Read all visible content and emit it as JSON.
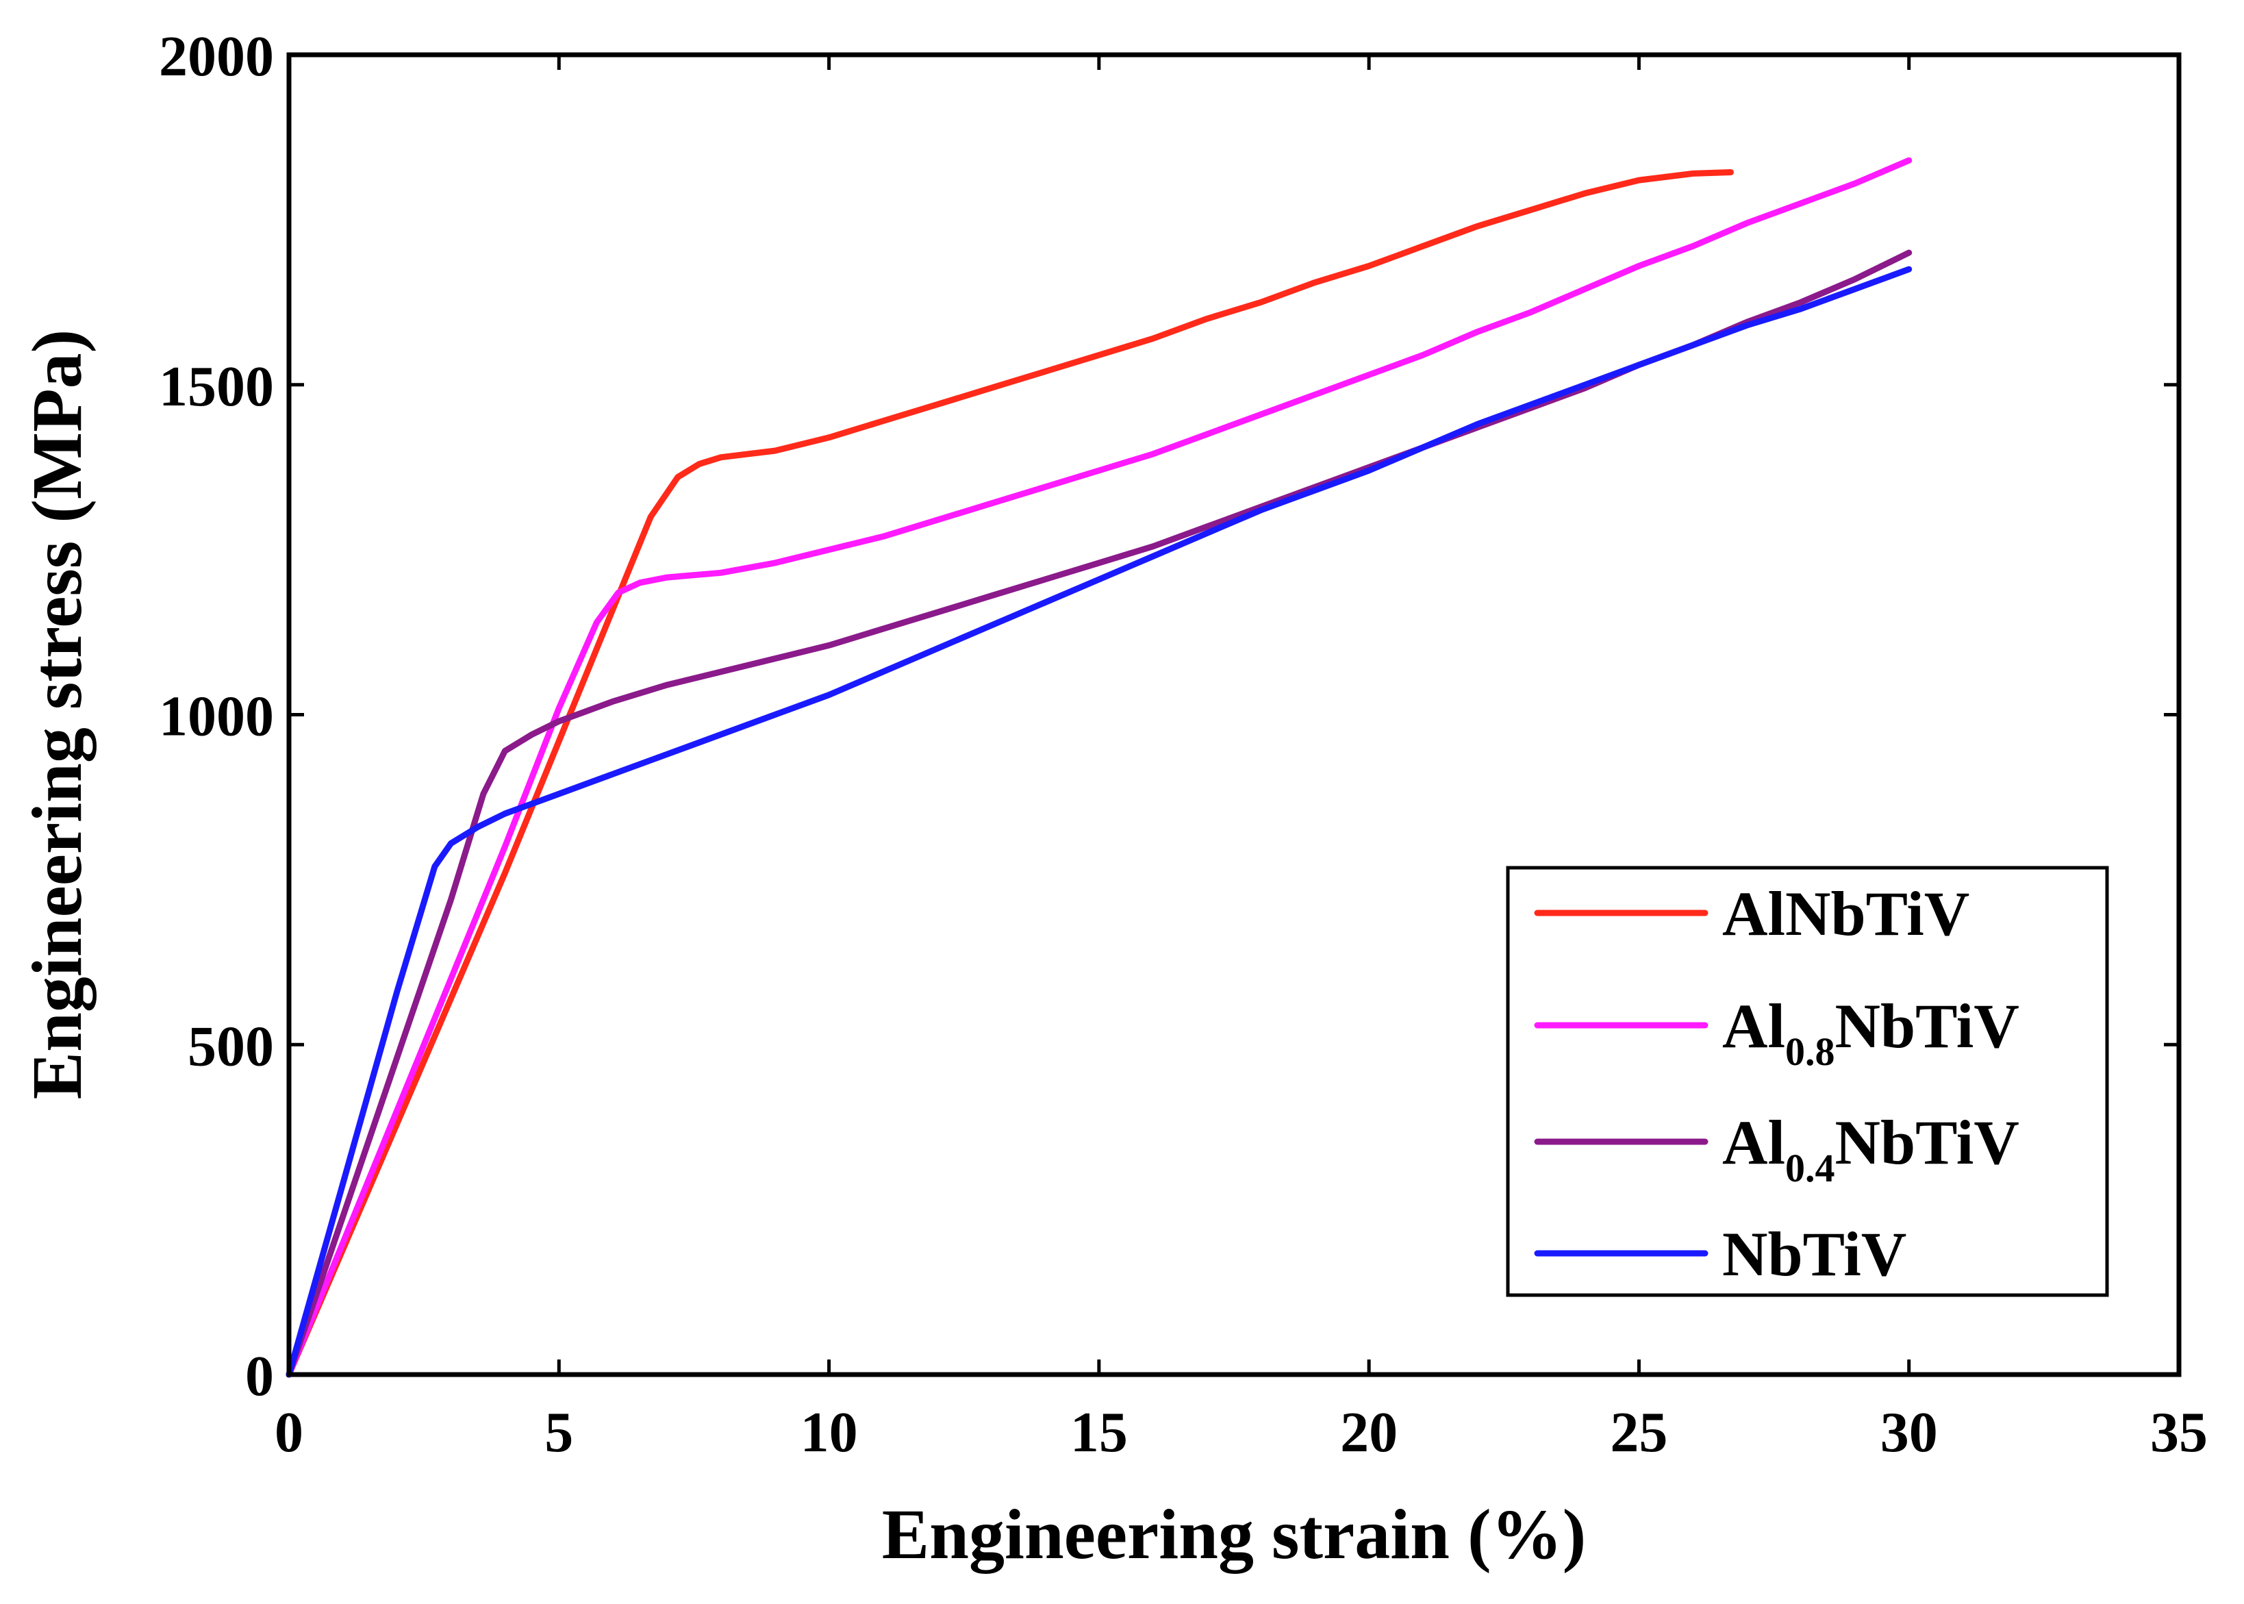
{
  "chart_data": {
    "type": "line",
    "title": "",
    "xlabel": "Engineering strain (%)",
    "ylabel": "Engineering stress (MPa)",
    "xlim": [
      0,
      35
    ],
    "ylim": [
      0,
      2000
    ],
    "xticks": [
      "0",
      "5",
      "10",
      "15",
      "20",
      "25",
      "30",
      "35"
    ],
    "yticks": [
      "0",
      "500",
      "1000",
      "1500",
      "2000"
    ],
    "xtick_values": [
      0,
      5,
      10,
      15,
      20,
      25,
      30,
      35
    ],
    "ytick_values": [
      0,
      500,
      1000,
      1500,
      2000
    ],
    "grid": false,
    "legend_position": "bottom-right",
    "series": [
      {
        "name": "AlNbTiV",
        "label_main": "AlNbTiV",
        "label_sub": "",
        "label_rest": "",
        "color": "#ff2a1a",
        "x": [
          0,
          1,
          2,
          3,
          4,
          5,
          6,
          6.7,
          7.2,
          7.6,
          8,
          9,
          10,
          11,
          12,
          13,
          14,
          15,
          16,
          17,
          18,
          19,
          20,
          21,
          22,
          23,
          24,
          25,
          26,
          26.7
        ],
        "y": [
          0,
          190,
          380,
          570,
          760,
          960,
          1160,
          1300,
          1360,
          1380,
          1390,
          1400,
          1420,
          1445,
          1470,
          1495,
          1520,
          1545,
          1570,
          1600,
          1625,
          1655,
          1680,
          1710,
          1740,
          1765,
          1790,
          1810,
          1820,
          1822
        ]
      },
      {
        "name": "Al0.8NbTiV",
        "label_main": "Al",
        "label_sub": "0.8",
        "label_rest": "NbTiV",
        "color": "#ff1aff",
        "x": [
          0,
          1,
          2,
          3,
          4,
          5,
          5.7,
          6.1,
          6.5,
          7,
          8,
          9,
          10,
          11,
          12,
          13,
          14,
          15,
          16,
          17,
          18,
          19,
          20,
          21,
          22,
          23,
          24,
          25,
          26,
          27,
          28,
          29,
          30
        ],
        "y": [
          0,
          200,
          400,
          600,
          800,
          1010,
          1140,
          1185,
          1200,
          1208,
          1215,
          1230,
          1250,
          1270,
          1295,
          1320,
          1345,
          1370,
          1395,
          1425,
          1455,
          1485,
          1515,
          1545,
          1580,
          1610,
          1645,
          1680,
          1710,
          1745,
          1775,
          1805,
          1840
        ]
      },
      {
        "name": "Al0.4NbTiV",
        "label_main": "Al",
        "label_sub": "0.4",
        "label_rest": "NbTiV",
        "color": "#8b1a8b",
        "x": [
          0,
          1,
          2,
          3,
          3.6,
          4,
          4.5,
          5,
          6,
          7,
          8,
          9,
          10,
          11,
          12,
          13,
          14,
          15,
          16,
          17,
          18,
          19,
          20,
          21,
          22,
          23,
          24,
          25,
          26,
          27,
          28,
          29,
          30
        ],
        "y": [
          0,
          240,
          480,
          720,
          880,
          945,
          970,
          990,
          1020,
          1045,
          1065,
          1085,
          1105,
          1130,
          1155,
          1180,
          1205,
          1230,
          1255,
          1285,
          1315,
          1345,
          1375,
          1405,
          1435,
          1465,
          1495,
          1530,
          1560,
          1595,
          1625,
          1660,
          1700
        ]
      },
      {
        "name": "NbTiV",
        "label_main": "NbTiV",
        "label_sub": "",
        "label_rest": "",
        "color": "#1a1aff",
        "x": [
          0,
          1,
          2,
          2.7,
          3,
          3.5,
          4,
          5,
          6,
          7,
          8,
          9,
          10,
          11,
          12,
          13,
          14,
          15,
          16,
          17,
          18,
          19,
          20,
          21,
          22,
          23,
          24,
          25,
          26,
          27,
          28,
          29,
          30
        ],
        "y": [
          0,
          290,
          580,
          770,
          805,
          830,
          850,
          880,
          910,
          940,
          970,
          1000,
          1030,
          1065,
          1100,
          1135,
          1170,
          1205,
          1240,
          1275,
          1310,
          1340,
          1370,
          1405,
          1440,
          1470,
          1500,
          1530,
          1560,
          1590,
          1615,
          1645,
          1675
        ]
      }
    ]
  }
}
